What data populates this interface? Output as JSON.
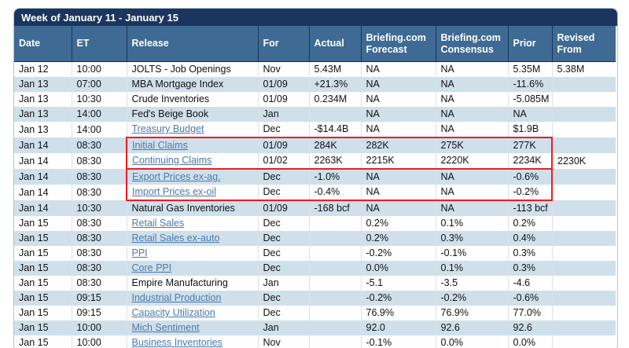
{
  "calendar": {
    "title": "Week of January 11 - January 15",
    "colors": {
      "title_bar": "#1b355f",
      "header_row": "#3e6a93",
      "alt_row": "#cfe0eb",
      "link": "#4d7aa8",
      "highlight_box": "#ec1c24"
    },
    "columns": [
      {
        "key": "date",
        "label": "Date"
      },
      {
        "key": "et",
        "label": "ET"
      },
      {
        "key": "release",
        "label": "Release"
      },
      {
        "key": "for",
        "label": "For"
      },
      {
        "key": "actual",
        "label": "Actual"
      },
      {
        "key": "forecast",
        "label": "Briefing.com Forecast"
      },
      {
        "key": "consensus",
        "label": "Briefing.com Consensus"
      },
      {
        "key": "prior",
        "label": "Prior"
      },
      {
        "key": "revised",
        "label": "Revised From"
      }
    ],
    "rows": [
      {
        "date": "Jan 12",
        "et": "10:00",
        "release": "JOLTS - Job Openings",
        "link": false,
        "for": "Nov",
        "actual": "5.43M",
        "forecast": "NA",
        "consensus": "NA",
        "prior": "5.35M",
        "revised": "5.38M"
      },
      {
        "date": "Jan 13",
        "et": "07:00",
        "release": "MBA Mortgage Index",
        "link": false,
        "for": "01/09",
        "actual": "+21.3%",
        "forecast": "NA",
        "consensus": "NA",
        "prior": "-11.6%",
        "revised": ""
      },
      {
        "date": "Jan 13",
        "et": "10:30",
        "release": "Crude Inventories",
        "link": false,
        "for": "01/09",
        "actual": "0.234M",
        "forecast": "NA",
        "consensus": "NA",
        "prior": "-5.085M",
        "revised": ""
      },
      {
        "date": "Jan 13",
        "et": "14:00",
        "release": "Fed's Beige Book",
        "link": false,
        "for": "Jan",
        "actual": "",
        "forecast": "NA",
        "consensus": "NA",
        "prior": "NA",
        "revised": ""
      },
      {
        "date": "Jan 13",
        "et": "14:00",
        "release": "Treasury Budget",
        "link": true,
        "for": "Dec",
        "actual": "-$14.4B",
        "forecast": "NA",
        "consensus": "NA",
        "prior": "$1.9B",
        "revised": ""
      },
      {
        "date": "Jan 14",
        "et": "08:30",
        "release": "Initial Claims",
        "link": true,
        "for": "01/09",
        "actual": "284K",
        "forecast": "282K",
        "consensus": "275K",
        "prior": "277K",
        "revised": ""
      },
      {
        "date": "Jan 14",
        "et": "08:30",
        "release": "Continuing Claims",
        "link": true,
        "for": "01/02",
        "actual": "2263K",
        "forecast": "2215K",
        "consensus": "2220K",
        "prior": "2234K",
        "revised": "2230K"
      },
      {
        "date": "Jan 14",
        "et": "08:30",
        "release": "Export Prices ex-ag.",
        "link": true,
        "for": "Dec",
        "actual": "-1.0%",
        "forecast": "NA",
        "consensus": "NA",
        "prior": "-0.6%",
        "revised": ""
      },
      {
        "date": "Jan 14",
        "et": "08:30",
        "release": "Import Prices ex-oil",
        "link": true,
        "for": "Dec",
        "actual": "-0.4%",
        "forecast": "NA",
        "consensus": "NA",
        "prior": "-0.2%",
        "revised": ""
      },
      {
        "date": "Jan 14",
        "et": "10:30",
        "release": "Natural Gas Inventories",
        "link": false,
        "for": "01/09",
        "actual": "-168 bcf",
        "forecast": "NA",
        "consensus": "NA",
        "prior": "-113 bcf",
        "revised": ""
      },
      {
        "date": "Jan 15",
        "et": "08:30",
        "release": "Retail Sales",
        "link": true,
        "for": "Dec",
        "actual": "",
        "forecast": "0.2%",
        "consensus": "0.1%",
        "prior": "0.2%",
        "revised": ""
      },
      {
        "date": "Jan 15",
        "et": "08:30",
        "release": "Retail Sales ex-auto",
        "link": true,
        "for": "Dec",
        "actual": "",
        "forecast": "0.2%",
        "consensus": "0.3%",
        "prior": "0.4%",
        "revised": ""
      },
      {
        "date": "Jan 15",
        "et": "08:30",
        "release": "PPI",
        "link": true,
        "for": "Dec",
        "actual": "",
        "forecast": "-0.2%",
        "consensus": "-0.1%",
        "prior": "0.3%",
        "revised": ""
      },
      {
        "date": "Jan 15",
        "et": "08:30",
        "release": "Core PPI",
        "link": true,
        "for": "Dec",
        "actual": "",
        "forecast": "0.0%",
        "consensus": "0.1%",
        "prior": "0.3%",
        "revised": ""
      },
      {
        "date": "Jan 15",
        "et": "08:30",
        "release": "Empire Manufacturing",
        "link": false,
        "for": "Jan",
        "actual": "",
        "forecast": "-5.1",
        "consensus": "-3.5",
        "prior": "-4.6",
        "revised": ""
      },
      {
        "date": "Jan 15",
        "et": "09:15",
        "release": "Industrial Production",
        "link": true,
        "for": "Dec",
        "actual": "",
        "forecast": "-0.2%",
        "consensus": "-0.2%",
        "prior": "-0.6%",
        "revised": ""
      },
      {
        "date": "Jan 15",
        "et": "09:15",
        "release": "Capacity Utilization",
        "link": true,
        "for": "Dec",
        "actual": "",
        "forecast": "76.9%",
        "consensus": "76.9%",
        "prior": "77.0%",
        "revised": ""
      },
      {
        "date": "Jan 15",
        "et": "10:00",
        "release": "Mich Sentiment",
        "link": true,
        "for": "Jan",
        "actual": "",
        "forecast": "92.0",
        "consensus": "92.6",
        "prior": "92.6",
        "revised": ""
      },
      {
        "date": "Jan 15",
        "et": "10:00",
        "release": "Business Inventories",
        "link": true,
        "for": "Nov",
        "actual": "",
        "forecast": "-0.1%",
        "consensus": "0.0%",
        "prior": "0.0%",
        "revised": ""
      }
    ],
    "highlight_boxes": [
      {
        "from_row": 5,
        "to_row": 6
      },
      {
        "from_row": 7,
        "to_row": 8
      }
    ]
  }
}
